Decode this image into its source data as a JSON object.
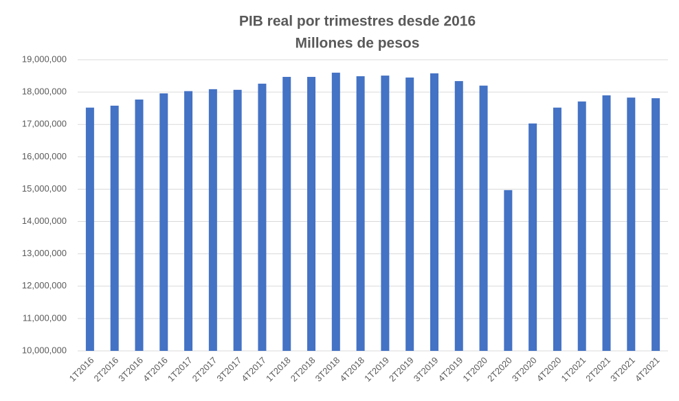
{
  "chart_data": {
    "type": "bar",
    "title": "PIB real por trimestres desde 2016",
    "subtitle": "Millones de pesos",
    "categories": [
      "1T2016",
      "2T2016",
      "3T2016",
      "4T2016",
      "1T2017",
      "2T2017",
      "3T2017",
      "4T2017",
      "1T2018",
      "2T2018",
      "3T2018",
      "4T2018",
      "1T2019",
      "2T2019",
      "3T2019",
      "4T2019",
      "1T2020",
      "2T2020",
      "3T2020",
      "4T2020",
      "1T2021",
      "2T2021",
      "3T2021",
      "4T2021"
    ],
    "values": [
      17520000,
      17580000,
      17770000,
      17960000,
      18030000,
      18090000,
      18070000,
      18260000,
      18470000,
      18470000,
      18600000,
      18490000,
      18510000,
      18450000,
      18580000,
      18340000,
      18200000,
      14970000,
      17030000,
      17520000,
      17710000,
      17900000,
      17830000,
      17810000
    ],
    "color": "#4472c4",
    "ylim": [
      10000000,
      19000000
    ],
    "yticks": [
      {
        "value": 10000000,
        "label": "10,000,000"
      },
      {
        "value": 11000000,
        "label": "11,000,000"
      },
      {
        "value": 12000000,
        "label": "12,000,000"
      },
      {
        "value": 13000000,
        "label": "13,000,000"
      },
      {
        "value": 14000000,
        "label": "14,000,000"
      },
      {
        "value": 15000000,
        "label": "15,000,000"
      },
      {
        "value": 16000000,
        "label": "16,000,000"
      },
      {
        "value": 17000000,
        "label": "17,000,000"
      },
      {
        "value": 18000000,
        "label": "18,000,000"
      },
      {
        "value": 19000000,
        "label": "19,000,000"
      }
    ],
    "grid": true
  }
}
